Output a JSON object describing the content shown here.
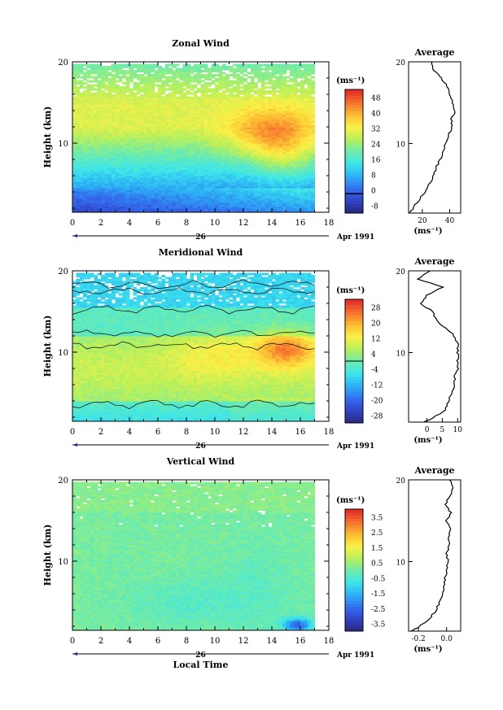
{
  "chart_data": [
    {
      "type": "heatmap",
      "title": "Zonal Wind",
      "ylabel": "Height (km)",
      "xlim": [
        0,
        18
      ],
      "ylim": [
        1.5,
        20
      ],
      "x_ticks": [
        "0",
        "2",
        "4",
        "6",
        "8",
        "10",
        "12",
        "14",
        "16",
        "18"
      ],
      "y_ticks": [
        "20",
        "10"
      ],
      "date_label": "26",
      "month_label": "Apr 1991",
      "colorbar": {
        "unit": "(ms⁻¹)",
        "ticks": [
          "48",
          "40",
          "32",
          "24",
          "16",
          "8",
          "0",
          "-8"
        ],
        "range": [
          -12,
          52
        ],
        "zero_line": 0
      },
      "field": {
        "x_hours": [
          0,
          17
        ],
        "peak": {
          "value": 52,
          "height_km": 12,
          "time_h": 13
        },
        "jet_layer_km": [
          13,
          14.5
        ],
        "low_level_min": {
          "value": -4,
          "height_km": 3
        }
      },
      "average_profile": {
        "title": "Average",
        "xlabel": "(ms⁻¹)",
        "x_ticks": [
          "20",
          "40"
        ],
        "xlim": [
          10,
          48
        ],
        "heights_km": [
          1.5,
          2,
          3,
          4,
          5,
          6,
          7,
          8,
          9,
          10,
          11,
          12,
          13,
          14,
          15,
          16,
          17,
          18,
          19,
          20
        ],
        "values": [
          11,
          13,
          17,
          22,
          25,
          28,
          30,
          33,
          35,
          37,
          39,
          42,
          41,
          44,
          42,
          40,
          38,
          34,
          28,
          27
        ]
      }
    },
    {
      "type": "heatmap",
      "title": "Meridional Wind",
      "ylabel": "Height (km)",
      "xlim": [
        0,
        18
      ],
      "ylim": [
        1.5,
        20
      ],
      "x_ticks": [
        "0",
        "2",
        "4",
        "6",
        "8",
        "10",
        "12",
        "14",
        "16",
        "18"
      ],
      "y_ticks": [
        "20",
        "10"
      ],
      "date_label": "26",
      "month_label": "Apr 1991",
      "colorbar": {
        "unit": "(ms⁻¹)",
        "ticks": [
          "28",
          "20",
          "12",
          "4",
          "-4",
          "-12",
          "-20",
          "-28"
        ],
        "range": [
          -32,
          32
        ],
        "zero_line": 0
      },
      "field": {
        "x_hours": [
          0,
          17
        ],
        "peak": {
          "value": 24,
          "height_km": 10,
          "time_h": 15
        },
        "contour_lines": true
      },
      "average_profile": {
        "title": "Average",
        "xlabel": "(ms⁻¹)",
        "x_ticks": [
          "0",
          "5",
          "10"
        ],
        "xlim": [
          -6,
          11
        ],
        "heights_km": [
          1.5,
          2,
          3,
          4,
          5,
          6,
          7,
          8,
          9,
          10,
          11,
          12,
          13,
          14,
          15,
          16,
          17,
          18,
          19,
          20
        ],
        "values": [
          -1,
          2,
          6,
          7,
          8,
          9,
          9,
          10,
          10,
          10,
          10,
          9,
          6,
          3,
          2,
          -2,
          0,
          5,
          -3,
          1
        ]
      }
    },
    {
      "type": "heatmap",
      "title": "Vertical Wind",
      "ylabel": "Height (km)",
      "xlabel": "Local Time",
      "xlim": [
        0,
        18
      ],
      "ylim": [
        1.5,
        20
      ],
      "x_ticks": [
        "0",
        "2",
        "4",
        "6",
        "8",
        "10",
        "12",
        "14",
        "16",
        "18"
      ],
      "y_ticks": [
        "20",
        "10"
      ],
      "date_label": "26",
      "month_label": "Apr 1991",
      "colorbar": {
        "unit": "(ms⁻¹)",
        "ticks": [
          "3.5",
          "2.5",
          "1.5",
          "0.5",
          "-0.5",
          "-1.5",
          "-2.5",
          "-3.5"
        ],
        "range": [
          -4,
          4
        ]
      },
      "field": {
        "x_hours": [
          0,
          17
        ],
        "background_value": 0,
        "downdraft": {
          "value": -2.5,
          "height_km": 2.5,
          "time_h": 15.5
        }
      },
      "average_profile": {
        "title": "Average",
        "xlabel": "(ms⁻¹)",
        "x_ticks": [
          "-0.2",
          "0.0"
        ],
        "xlim": [
          -0.27,
          0.1
        ],
        "heights_km": [
          1.5,
          2,
          3,
          4,
          5,
          6,
          7,
          8,
          9,
          10,
          11,
          12,
          13,
          14,
          15,
          16,
          17,
          18,
          19,
          20
        ],
        "values": [
          -0.25,
          -0.2,
          -0.12,
          -0.08,
          -0.05,
          -0.03,
          -0.02,
          -0.01,
          0.0,
          0.01,
          0.0,
          0.02,
          0.01,
          0.03,
          0.0,
          0.03,
          -0.01,
          0.02,
          0.05,
          0.02
        ]
      }
    }
  ]
}
